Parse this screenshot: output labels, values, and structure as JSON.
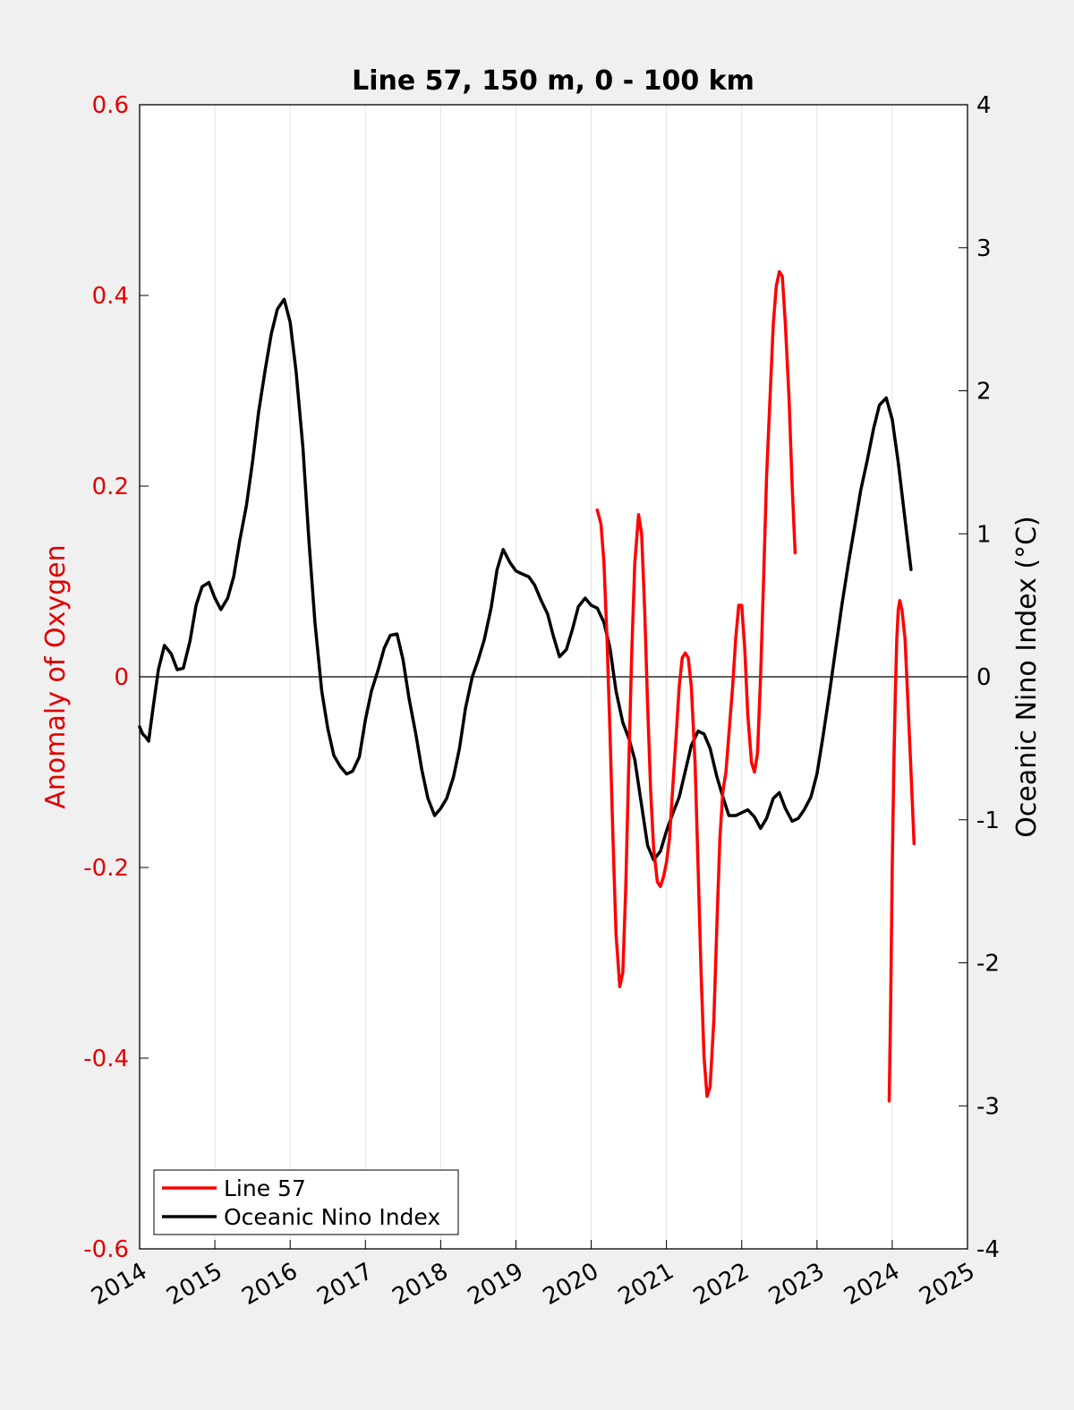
{
  "chart_data": {
    "type": "line",
    "title": "Line 57, 150 m, 0 - 100 km",
    "ylabel_left": "Anomaly of Oxygen",
    "ylabel_right": "Oceanic Nino Index (°C)",
    "xlim": [
      2014,
      2025
    ],
    "ylim_left": [
      -0.6,
      0.6
    ],
    "ylim_right": [
      -4,
      4
    ],
    "x_ticks": [
      2014,
      2015,
      2016,
      2017,
      2018,
      2019,
      2020,
      2021,
      2022,
      2023,
      2024,
      2025
    ],
    "x_tick_labels": [
      "2014",
      "2015",
      "2016",
      "2017",
      "2018",
      "2019",
      "2020",
      "2021",
      "2022",
      "2023",
      "2024",
      "2025"
    ],
    "left_ticks": [
      -0.6,
      -0.4,
      -0.2,
      0,
      0.2,
      0.4,
      0.6
    ],
    "left_tick_labels": [
      "-0.6",
      "-0.4",
      "-0.2",
      "0",
      "0.2",
      "0.4",
      "0.6"
    ],
    "right_ticks": [
      -4,
      -3,
      -2,
      -1,
      0,
      1,
      2,
      3,
      4
    ],
    "right_tick_labels": [
      "-4",
      "-3",
      "-2",
      "-1",
      "0",
      "1",
      "2",
      "3",
      "4"
    ],
    "grid": "vertical",
    "legend_position": "bottom-left",
    "colors": {
      "line57": "#ff0000",
      "oni": "#000000",
      "left_axis": "#e00000"
    },
    "series": [
      {
        "name": "Line 57",
        "axis": "left",
        "segments": [
          [
            [
              2020.08,
              0.175
            ],
            [
              2020.13,
              0.16
            ],
            [
              2020.17,
              0.12
            ],
            [
              2020.21,
              0.04
            ],
            [
              2020.25,
              -0.06
            ],
            [
              2020.29,
              -0.17
            ],
            [
              2020.33,
              -0.27
            ],
            [
              2020.38,
              -0.325
            ],
            [
              2020.42,
              -0.31
            ],
            [
              2020.46,
              -0.22
            ],
            [
              2020.5,
              -0.09
            ],
            [
              2020.54,
              0.03
            ],
            [
              2020.58,
              0.12
            ],
            [
              2020.63,
              0.17
            ],
            [
              2020.67,
              0.15
            ],
            [
              2020.71,
              0.07
            ],
            [
              2020.75,
              -0.03
            ],
            [
              2020.79,
              -0.12
            ],
            [
              2020.83,
              -0.18
            ],
            [
              2020.88,
              -0.215
            ],
            [
              2020.92,
              -0.22
            ],
            [
              2020.96,
              -0.21
            ],
            [
              2021.0,
              -0.195
            ],
            [
              2021.04,
              -0.17
            ],
            [
              2021.08,
              -0.12
            ],
            [
              2021.13,
              -0.06
            ],
            [
              2021.17,
              -0.01
            ],
            [
              2021.21,
              0.02
            ],
            [
              2021.25,
              0.025
            ],
            [
              2021.29,
              0.02
            ],
            [
              2021.33,
              -0.01
            ],
            [
              2021.38,
              -0.09
            ],
            [
              2021.42,
              -0.2
            ],
            [
              2021.46,
              -0.31
            ],
            [
              2021.5,
              -0.4
            ],
            [
              2021.54,
              -0.44
            ],
            [
              2021.58,
              -0.43
            ],
            [
              2021.63,
              -0.36
            ],
            [
              2021.67,
              -0.26
            ],
            [
              2021.71,
              -0.17
            ],
            [
              2021.75,
              -0.12
            ],
            [
              2021.79,
              -0.1
            ],
            [
              2021.83,
              -0.06
            ],
            [
              2021.88,
              -0.01
            ],
            [
              2021.92,
              0.04
            ],
            [
              2021.96,
              0.075
            ],
            [
              2022.0,
              0.075
            ],
            [
              2022.04,
              0.03
            ],
            [
              2022.08,
              -0.04
            ],
            [
              2022.13,
              -0.09
            ],
            [
              2022.17,
              -0.1
            ],
            [
              2022.21,
              -0.08
            ],
            [
              2022.25,
              0.0
            ],
            [
              2022.29,
              0.1
            ],
            [
              2022.33,
              0.21
            ],
            [
              2022.38,
              0.3
            ],
            [
              2022.42,
              0.37
            ],
            [
              2022.46,
              0.41
            ],
            [
              2022.5,
              0.425
            ],
            [
              2022.54,
              0.42
            ],
            [
              2022.58,
              0.37
            ],
            [
              2022.63,
              0.29
            ],
            [
              2022.67,
              0.2
            ],
            [
              2022.71,
              0.13
            ]
          ],
          [
            [
              2023.96,
              -0.445
            ],
            [
              2023.98,
              -0.34
            ],
            [
              2024.0,
              -0.2
            ],
            [
              2024.02,
              -0.1
            ],
            [
              2024.04,
              -0.02
            ],
            [
              2024.06,
              0.04
            ],
            [
              2024.08,
              0.07
            ],
            [
              2024.1,
              0.08
            ],
            [
              2024.13,
              0.07
            ],
            [
              2024.17,
              0.04
            ],
            [
              2024.21,
              -0.03
            ],
            [
              2024.25,
              -0.1
            ],
            [
              2024.29,
              -0.175
            ]
          ]
        ]
      },
      {
        "name": "Oceanic Nino Index",
        "axis": "right",
        "points": [
          [
            2014.0,
            -0.35
          ],
          [
            2014.04,
            -0.4
          ],
          [
            2014.08,
            -0.42
          ],
          [
            2014.12,
            -0.45
          ],
          [
            2014.17,
            -0.25
          ],
          [
            2014.25,
            0.05
          ],
          [
            2014.33,
            0.22
          ],
          [
            2014.42,
            0.16
          ],
          [
            2014.5,
            0.05
          ],
          [
            2014.58,
            0.06
          ],
          [
            2014.67,
            0.25
          ],
          [
            2014.75,
            0.5
          ],
          [
            2014.83,
            0.63
          ],
          [
            2014.92,
            0.66
          ],
          [
            2015.0,
            0.55
          ],
          [
            2015.08,
            0.47
          ],
          [
            2015.17,
            0.55
          ],
          [
            2015.25,
            0.7
          ],
          [
            2015.33,
            0.95
          ],
          [
            2015.42,
            1.2
          ],
          [
            2015.5,
            1.5
          ],
          [
            2015.58,
            1.85
          ],
          [
            2015.67,
            2.15
          ],
          [
            2015.75,
            2.4
          ],
          [
            2015.83,
            2.57
          ],
          [
            2015.92,
            2.64
          ],
          [
            2016.0,
            2.48
          ],
          [
            2016.08,
            2.13
          ],
          [
            2016.17,
            1.6
          ],
          [
            2016.25,
            0.95
          ],
          [
            2016.33,
            0.38
          ],
          [
            2016.42,
            -0.1
          ],
          [
            2016.5,
            -0.36
          ],
          [
            2016.58,
            -0.55
          ],
          [
            2016.67,
            -0.63
          ],
          [
            2016.75,
            -0.68
          ],
          [
            2016.83,
            -0.66
          ],
          [
            2016.92,
            -0.56
          ],
          [
            2017.0,
            -0.3
          ],
          [
            2017.08,
            -0.1
          ],
          [
            2017.17,
            0.05
          ],
          [
            2017.25,
            0.2
          ],
          [
            2017.33,
            0.29
          ],
          [
            2017.42,
            0.3
          ],
          [
            2017.5,
            0.12
          ],
          [
            2017.58,
            -0.15
          ],
          [
            2017.67,
            -0.4
          ],
          [
            2017.75,
            -0.65
          ],
          [
            2017.83,
            -0.85
          ],
          [
            2017.92,
            -0.97
          ],
          [
            2018.0,
            -0.92
          ],
          [
            2018.08,
            -0.85
          ],
          [
            2018.17,
            -0.7
          ],
          [
            2018.25,
            -0.5
          ],
          [
            2018.33,
            -0.22
          ],
          [
            2018.42,
            0.0
          ],
          [
            2018.5,
            0.12
          ],
          [
            2018.58,
            0.26
          ],
          [
            2018.67,
            0.48
          ],
          [
            2018.75,
            0.75
          ],
          [
            2018.83,
            0.89
          ],
          [
            2018.92,
            0.8
          ],
          [
            2019.0,
            0.74
          ],
          [
            2019.08,
            0.72
          ],
          [
            2019.17,
            0.7
          ],
          [
            2019.25,
            0.64
          ],
          [
            2019.33,
            0.54
          ],
          [
            2019.42,
            0.44
          ],
          [
            2019.5,
            0.28
          ],
          [
            2019.58,
            0.14
          ],
          [
            2019.67,
            0.19
          ],
          [
            2019.75,
            0.33
          ],
          [
            2019.83,
            0.49
          ],
          [
            2019.92,
            0.55
          ],
          [
            2020.0,
            0.5
          ],
          [
            2020.08,
            0.48
          ],
          [
            2020.17,
            0.38
          ],
          [
            2020.25,
            0.2
          ],
          [
            2020.33,
            -0.1
          ],
          [
            2020.42,
            -0.32
          ],
          [
            2020.5,
            -0.43
          ],
          [
            2020.58,
            -0.58
          ],
          [
            2020.67,
            -0.9
          ],
          [
            2020.75,
            -1.18
          ],
          [
            2020.83,
            -1.28
          ],
          [
            2020.92,
            -1.22
          ],
          [
            2021.0,
            -1.08
          ],
          [
            2021.08,
            -0.96
          ],
          [
            2021.17,
            -0.84
          ],
          [
            2021.25,
            -0.66
          ],
          [
            2021.33,
            -0.48
          ],
          [
            2021.42,
            -0.38
          ],
          [
            2021.5,
            -0.4
          ],
          [
            2021.58,
            -0.5
          ],
          [
            2021.67,
            -0.7
          ],
          [
            2021.75,
            -0.84
          ],
          [
            2021.83,
            -0.97
          ],
          [
            2021.92,
            -0.97
          ],
          [
            2022.0,
            -0.95
          ],
          [
            2022.08,
            -0.93
          ],
          [
            2022.17,
            -0.98
          ],
          [
            2022.25,
            -1.06
          ],
          [
            2022.33,
            -0.99
          ],
          [
            2022.42,
            -0.85
          ],
          [
            2022.5,
            -0.81
          ],
          [
            2022.58,
            -0.92
          ],
          [
            2022.67,
            -1.01
          ],
          [
            2022.75,
            -0.99
          ],
          [
            2022.83,
            -0.93
          ],
          [
            2022.92,
            -0.84
          ],
          [
            2023.0,
            -0.68
          ],
          [
            2023.08,
            -0.42
          ],
          [
            2023.17,
            -0.1
          ],
          [
            2023.25,
            0.2
          ],
          [
            2023.33,
            0.5
          ],
          [
            2023.42,
            0.8
          ],
          [
            2023.5,
            1.05
          ],
          [
            2023.58,
            1.3
          ],
          [
            2023.67,
            1.52
          ],
          [
            2023.75,
            1.73
          ],
          [
            2023.83,
            1.9
          ],
          [
            2023.92,
            1.95
          ],
          [
            2024.0,
            1.8
          ],
          [
            2024.08,
            1.5
          ],
          [
            2024.17,
            1.1
          ],
          [
            2024.25,
            0.75
          ]
        ]
      }
    ]
  }
}
